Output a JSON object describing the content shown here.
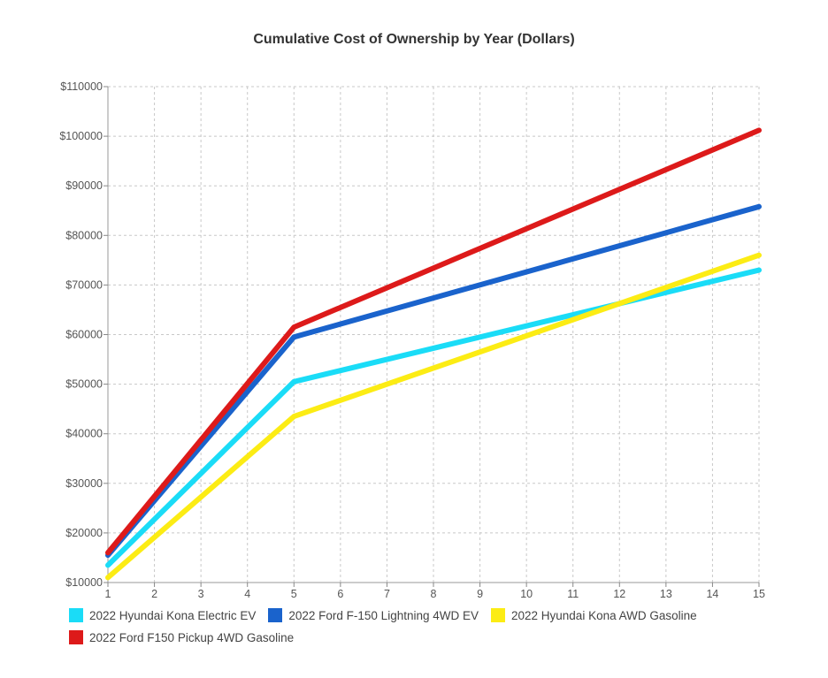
{
  "chart_data": {
    "type": "line",
    "title": "Cumulative Cost of Ownership by Year (Dollars)",
    "xlabel": "",
    "ylabel": "",
    "x": [
      1,
      5,
      15
    ],
    "x_ticks": [
      "1",
      "2",
      "3",
      "4",
      "5",
      "6",
      "7",
      "8",
      "9",
      "10",
      "11",
      "12",
      "13",
      "14",
      "15"
    ],
    "y_ticks": [
      "$10000",
      "$20000",
      "$30000",
      "$40000",
      "$50000",
      "$60000",
      "$70000",
      "$80000",
      "$90000",
      "$100000",
      "$110000"
    ],
    "xlim": [
      1,
      15
    ],
    "ylim": [
      10000,
      110000
    ],
    "grid": true,
    "legend_position": "bottom",
    "series": [
      {
        "name": "2022 Hyundai Kona Electric EV",
        "color": "#1adcf7",
        "values": [
          13500,
          50500,
          73000
        ]
      },
      {
        "name": "2022 Ford F-150 Lightning 4WD EV",
        "color": "#1a63cc",
        "values": [
          15500,
          59500,
          85800
        ]
      },
      {
        "name": "2022 Hyundai Kona AWD Gasoline",
        "color": "#fcec14",
        "values": [
          11000,
          43500,
          76000
        ]
      },
      {
        "name": "2022 Ford F150 Pickup 4WD Gasoline",
        "color": "#dd1a1a",
        "values": [
          16000,
          61500,
          101200
        ]
      }
    ]
  }
}
